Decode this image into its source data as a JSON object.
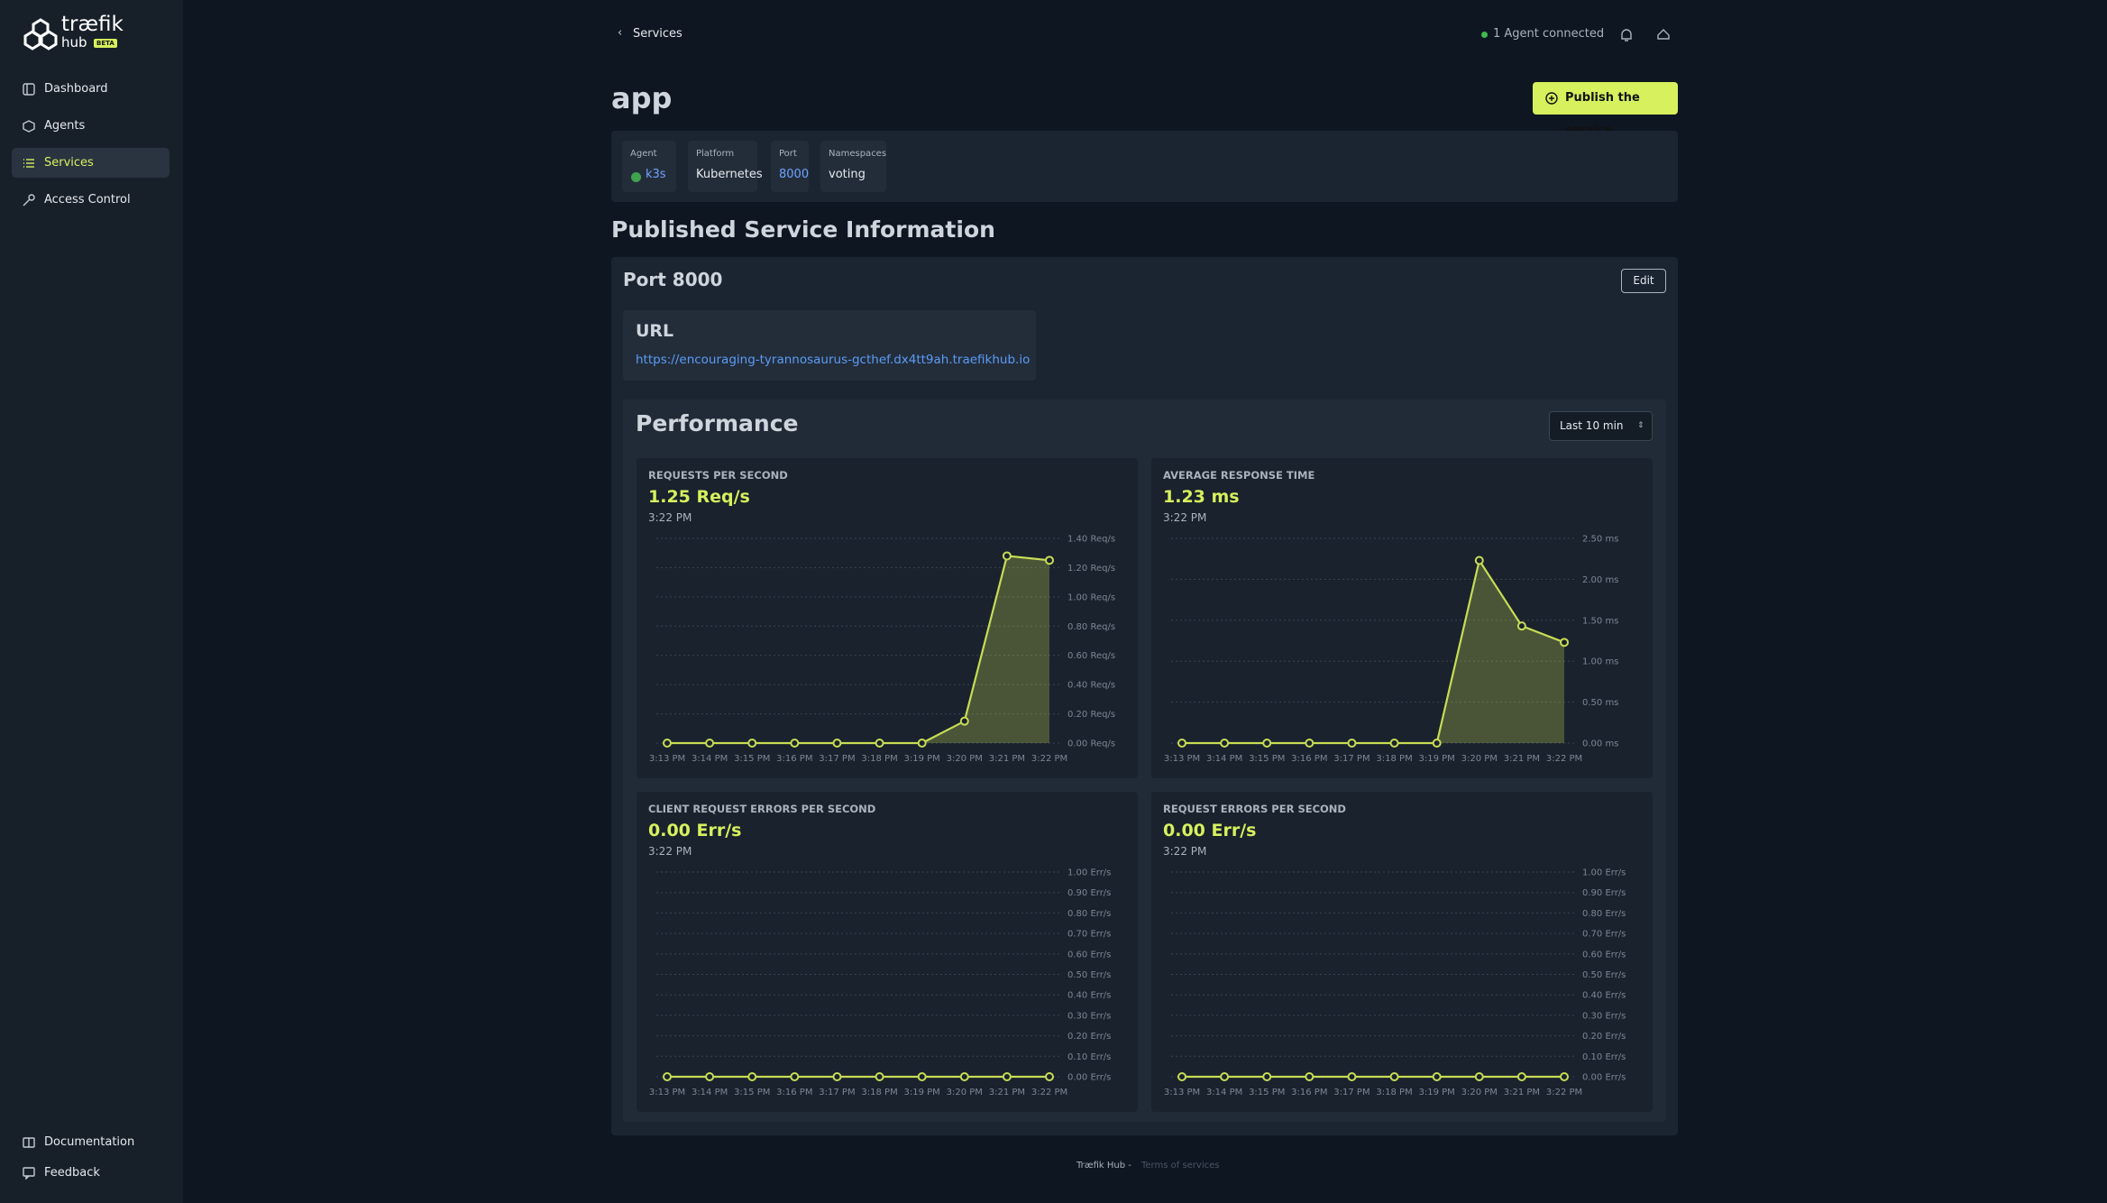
{
  "sidebar": {
    "logo": {
      "name": "træfik",
      "product": "hub",
      "badge": "BETA"
    },
    "nav": [
      "Dashboard",
      "Agents",
      "Services",
      "Access Control"
    ],
    "bottom_nav": [
      "Documentation",
      "Feedback"
    ]
  },
  "header": {
    "breadcrumb": "Services",
    "status": "1 Agent connected"
  },
  "service": {
    "name": "app",
    "publish_button": "Publish the service",
    "fields": [
      {
        "label": "Agent",
        "value": "k3s"
      },
      {
        "label": "Platform",
        "value": "Kubernetes"
      },
      {
        "label": "Port",
        "value": "8000"
      },
      {
        "label": "Namespaces",
        "value": "voting"
      }
    ]
  },
  "published": {
    "title": "Published Service Information",
    "port_title": "Port 8000",
    "edit": "Edit",
    "url_label": "URL",
    "url": "https://encouraging-tyrannosaurus-gcthef.dx4tt9ah.traefikhub.io"
  },
  "performance": {
    "title": "Performance",
    "range": "Last 10 min",
    "charts": [
      {
        "type": "line",
        "title": "REQUESTS PER SECOND",
        "current": "1.25 Req/s",
        "time": "3:22 PM",
        "color": "#c8dc55",
        "categories": [
          "3:13 PM",
          "3:14 PM",
          "3:15 PM",
          "3:16 PM",
          "3:17 PM",
          "3:18 PM",
          "3:19 PM",
          "3:20 PM",
          "3:21 PM",
          "3:22 PM"
        ],
        "values": [
          0,
          0,
          0,
          0,
          0,
          0,
          0,
          0.15,
          1.28,
          1.25
        ],
        "ylim": [
          0,
          1.4
        ],
        "yticks": [
          {
            "value": 0,
            "label": "0.00 Req/s"
          },
          {
            "value": 0.2,
            "label": "0.20 Req/s"
          },
          {
            "value": 0.4,
            "label": "0.40 Req/s"
          },
          {
            "value": 0.6,
            "label": "0.60 Req/s"
          },
          {
            "value": 0.8,
            "label": "0.80 Req/s"
          },
          {
            "value": 1,
            "label": "1.00 Req/s"
          },
          {
            "value": 1.2,
            "label": "1.20 Req/s"
          },
          {
            "value": 1.4,
            "label": "1.40 Req/s"
          }
        ]
      },
      {
        "type": "line",
        "title": "AVERAGE RESPONSE TIME",
        "current": "1.23 ms",
        "time": "3:22 PM",
        "color": "#c8dc55",
        "categories": [
          "3:13 PM",
          "3:14 PM",
          "3:15 PM",
          "3:16 PM",
          "3:17 PM",
          "3:18 PM",
          "3:19 PM",
          "3:20 PM",
          "3:21 PM",
          "3:22 PM"
        ],
        "values": [
          0,
          0,
          0,
          0,
          0,
          0,
          0,
          2.23,
          1.43,
          1.23
        ],
        "ylim": [
          0,
          2.5
        ],
        "yticks": [
          {
            "value": 0,
            "label": "0.00 ms"
          },
          {
            "value": 0.5,
            "label": "0.50 ms"
          },
          {
            "value": 1,
            "label": "1.00 ms"
          },
          {
            "value": 1.5,
            "label": "1.50 ms"
          },
          {
            "value": 2,
            "label": "2.00 ms"
          },
          {
            "value": 2.5,
            "label": "2.50 ms"
          }
        ]
      },
      {
        "type": "line",
        "title": "CLIENT REQUEST ERRORS PER SECOND",
        "current": "0.00 Err/s",
        "time": "3:22 PM",
        "color": "#c8dc55",
        "categories": [
          "3:13 PM",
          "3:14 PM",
          "3:15 PM",
          "3:16 PM",
          "3:17 PM",
          "3:18 PM",
          "3:19 PM",
          "3:20 PM",
          "3:21 PM",
          "3:22 PM"
        ],
        "values": [
          0,
          0,
          0,
          0,
          0,
          0,
          0,
          0,
          0,
          0
        ],
        "ylim": [
          0,
          1
        ],
        "yticks": [
          {
            "value": 0,
            "label": "0.00 Err/s"
          },
          {
            "value": 0.1,
            "label": "0.10 Err/s"
          },
          {
            "value": 0.2,
            "label": "0.20 Err/s"
          },
          {
            "value": 0.3,
            "label": "0.30 Err/s"
          },
          {
            "value": 0.4,
            "label": "0.40 Err/s"
          },
          {
            "value": 0.5,
            "label": "0.50 Err/s"
          },
          {
            "value": 0.6,
            "label": "0.60 Err/s"
          },
          {
            "value": 0.7,
            "label": "0.70 Err/s"
          },
          {
            "value": 0.8,
            "label": "0.80 Err/s"
          },
          {
            "value": 0.9,
            "label": "0.90 Err/s"
          },
          {
            "value": 1,
            "label": "1.00 Err/s"
          }
        ]
      },
      {
        "type": "line",
        "title": "REQUEST ERRORS PER SECOND",
        "current": "0.00 Err/s",
        "time": "3:22 PM",
        "color": "#c8dc55",
        "categories": [
          "3:13 PM",
          "3:14 PM",
          "3:15 PM",
          "3:16 PM",
          "3:17 PM",
          "3:18 PM",
          "3:19 PM",
          "3:20 PM",
          "3:21 PM",
          "3:22 PM"
        ],
        "values": [
          0,
          0,
          0,
          0,
          0,
          0,
          0,
          0,
          0,
          0
        ],
        "ylim": [
          0,
          1
        ],
        "yticks": [
          {
            "value": 0,
            "label": "0.00 Err/s"
          },
          {
            "value": 0.1,
            "label": "0.10 Err/s"
          },
          {
            "value": 0.2,
            "label": "0.20 Err/s"
          },
          {
            "value": 0.3,
            "label": "0.30 Err/s"
          },
          {
            "value": 0.4,
            "label": "0.40 Err/s"
          },
          {
            "value": 0.5,
            "label": "0.50 Err/s"
          },
          {
            "value": 0.6,
            "label": "0.60 Err/s"
          },
          {
            "value": 0.7,
            "label": "0.70 Err/s"
          },
          {
            "value": 0.8,
            "label": "0.80 Err/s"
          },
          {
            "value": 0.9,
            "label": "0.90 Err/s"
          },
          {
            "value": 1,
            "label": "1.00 Err/s"
          }
        ]
      }
    ]
  },
  "footer": {
    "brand": "Træfik Hub -",
    "link": "Terms of services"
  }
}
